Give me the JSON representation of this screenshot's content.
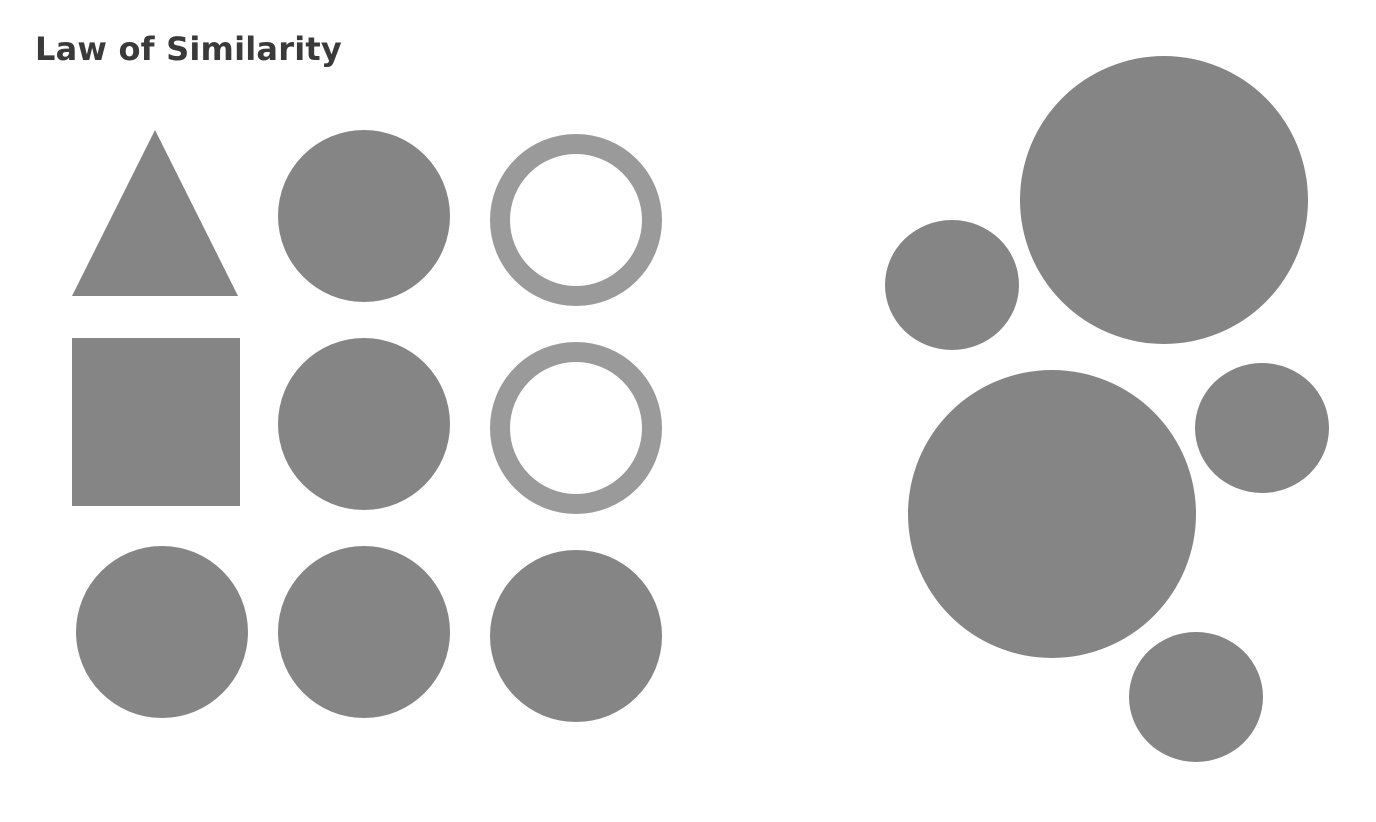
{
  "title": "Law of Similarity",
  "colors": {
    "filled_shape": "#858585",
    "ring_outline": "#9a9a9a",
    "background": "#ffffff",
    "title_text": "#3a3a3a"
  },
  "shape_grid": {
    "rows": [
      [
        "filled-triangle",
        "filled-circle",
        "hollow-circle"
      ],
      [
        "filled-square",
        "filled-circle",
        "hollow-circle"
      ],
      [
        "filled-circle",
        "filled-circle",
        "filled-circle"
      ]
    ]
  },
  "size_cluster": {
    "circles": [
      "large",
      "small",
      "large",
      "small",
      "small"
    ]
  }
}
